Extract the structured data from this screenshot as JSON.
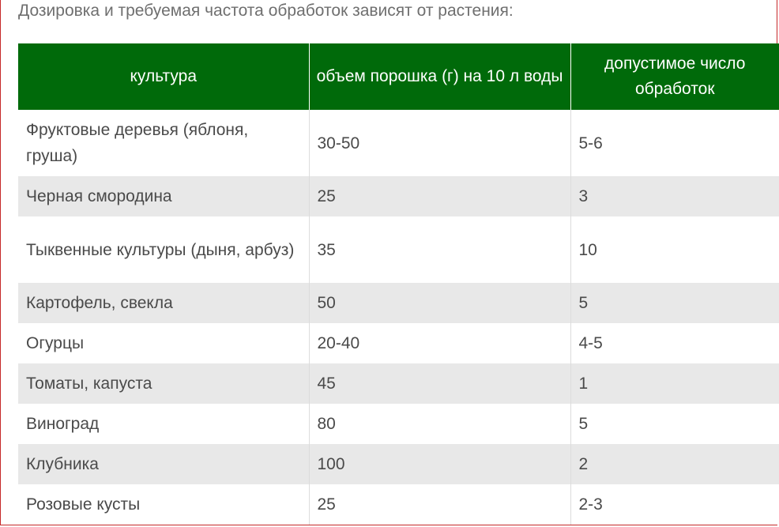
{
  "intro_text": "Дозировка и требуемая частота обработок зависят от растения:",
  "table": {
    "headers": [
      "культура",
      "объем порошка (г) на 10 л воды",
      "допустимое число обработок"
    ],
    "rows": [
      [
        "Фруктовые деревья (яблоня, груша)",
        "30-50",
        "5-6"
      ],
      [
        "Черная смородина",
        "25",
        "3"
      ],
      [
        "Тыквенные культуры (дыня, арбуз)",
        "35",
        "10"
      ],
      [
        "Картофель, свекла",
        "50",
        "5"
      ],
      [
        "Огурцы",
        "20-40",
        "4-5"
      ],
      [
        "Томаты, капуста",
        "45",
        "1"
      ],
      [
        "Виноград",
        "80",
        "5"
      ],
      [
        "Клубника",
        "100",
        "2"
      ],
      [
        "Розовые кусты",
        "25",
        "2-3"
      ]
    ]
  },
  "colors": {
    "header_bg": "#006a0a",
    "header_text": "#ffffff",
    "stripe_bg": "#e8e8e8",
    "body_text": "#4a4a4a",
    "frame_border": "#c62828"
  }
}
